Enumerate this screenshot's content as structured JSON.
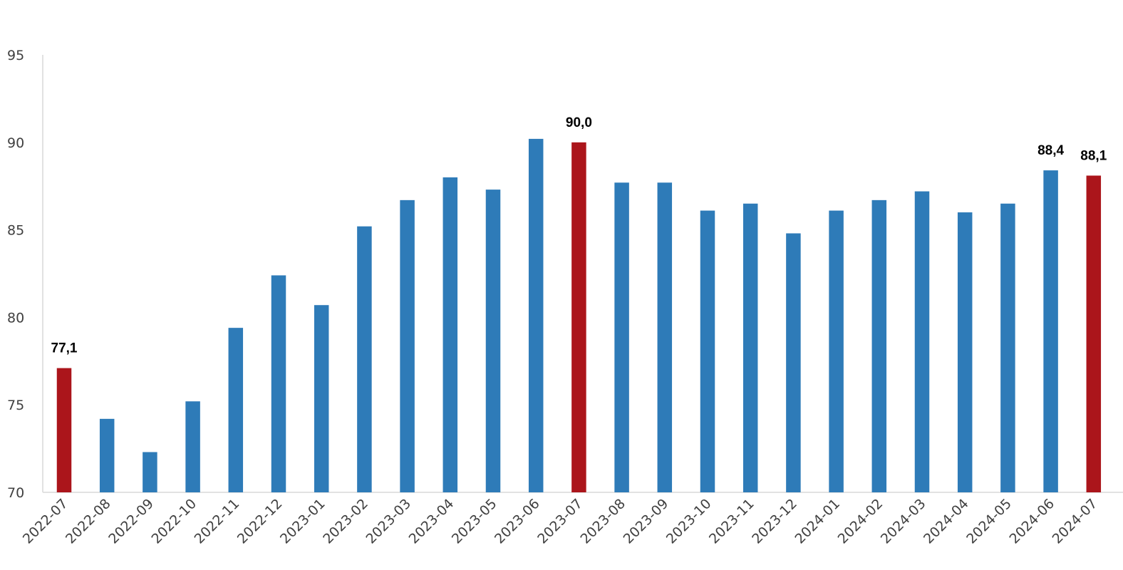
{
  "chart_data": {
    "type": "bar",
    "categories": [
      "2022-07",
      "2022-08",
      "2022-09",
      "2022-10",
      "2022-11",
      "2022-12",
      "2023-01",
      "2023-02",
      "2023-03",
      "2023-04",
      "2023-05",
      "2023-06",
      "2023-07",
      "2023-08",
      "2023-09",
      "2023-10",
      "2023-11",
      "2023-12",
      "2024-01",
      "2024-02",
      "2024-03",
      "2024-04",
      "2024-05",
      "2024-06",
      "2024-07"
    ],
    "values": [
      77.1,
      74.2,
      72.3,
      75.2,
      79.4,
      82.4,
      80.7,
      85.2,
      86.7,
      88.0,
      87.3,
      90.2,
      90.0,
      87.7,
      87.7,
      86.1,
      86.5,
      84.8,
      86.1,
      86.7,
      87.2,
      86.0,
      86.5,
      88.4,
      88.1
    ],
    "highlighted": [
      "2022-07",
      "2023-07",
      "2024-07"
    ],
    "data_labels": [
      {
        "category": "2022-07",
        "text": "77,1"
      },
      {
        "category": "2023-07",
        "text": "90,0"
      },
      {
        "category": "2024-06",
        "text": "88,4"
      },
      {
        "category": "2024-07",
        "text": "88,1"
      }
    ],
    "ylim": [
      70,
      95
    ],
    "yticks": [
      70,
      75,
      80,
      85,
      90,
      95
    ],
    "grid": false,
    "colors": {
      "bar": "#2e7bb8",
      "highlight": "#ab151b",
      "axis": "#d9d9d9"
    }
  }
}
